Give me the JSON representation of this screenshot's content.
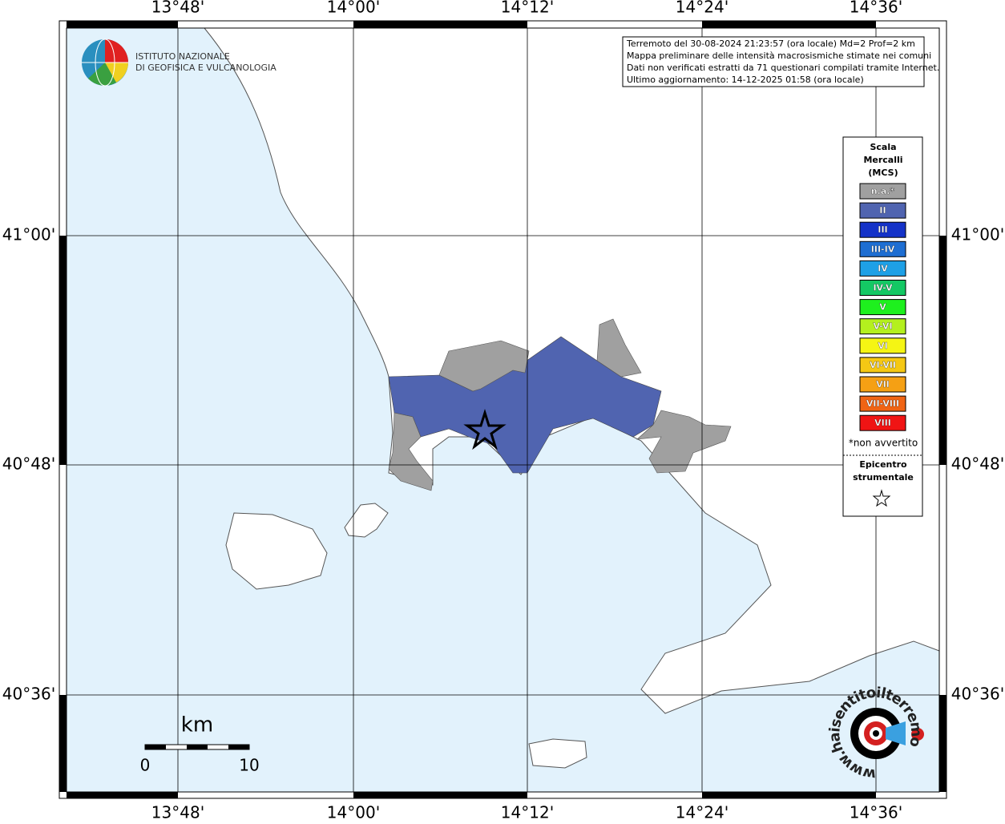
{
  "map": {
    "lon_labels": [
      "13°48'",
      "14°00'",
      "14°12'",
      "14°24'",
      "14°36'"
    ],
    "lat_labels": [
      "41°00'",
      "40°48'",
      "40°36'"
    ]
  },
  "logo_ingv": {
    "line1": "ISTITUTO NAZIONALE",
    "line2": "DI GEOFISICA E VULCANOLOGIA"
  },
  "info_box": {
    "lines": [
      "Terremoto del 30-08-2024 21:23:57 (ora locale) Md=2 Prof=2 km",
      "Mappa preliminare delle intensità macrosismiche stimate nei comuni",
      "Dati non verificati estratti da 71 questionari compilati tramite Internet.",
      "Ultimo aggiornamento: 14-12-2025 01:58 (ora locale)"
    ]
  },
  "legend": {
    "title_lines": [
      "Scala",
      "Mercalli",
      "(MCS)"
    ],
    "items": [
      {
        "label": "n.a.*",
        "color": "#a0a0a0"
      },
      {
        "label": "II",
        "color": "#5064b0"
      },
      {
        "label": "III",
        "color": "#1432c8"
      },
      {
        "label": "III-IV",
        "color": "#1e6ed2"
      },
      {
        "label": "IV",
        "color": "#1ea0e6"
      },
      {
        "label": "IV-V",
        "color": "#14c864"
      },
      {
        "label": "V",
        "color": "#1ef01e"
      },
      {
        "label": "V-VI",
        "color": "#b4f01e"
      },
      {
        "label": "VI",
        "color": "#f5f514"
      },
      {
        "label": "VI-VII",
        "color": "#f5c814"
      },
      {
        "label": "VII",
        "color": "#f5a014"
      },
      {
        "label": "VII-VIII",
        "color": "#f06414"
      },
      {
        "label": "VIII",
        "color": "#f01414"
      }
    ],
    "note": "*non avvertito",
    "epicenter_lines": [
      "Epicentro",
      "strumentale"
    ]
  },
  "scale_bar": {
    "unit": "km",
    "start": "0",
    "end": "10"
  },
  "logo_hsit": {
    "text": "www.haisentitoilterremoto.it"
  }
}
